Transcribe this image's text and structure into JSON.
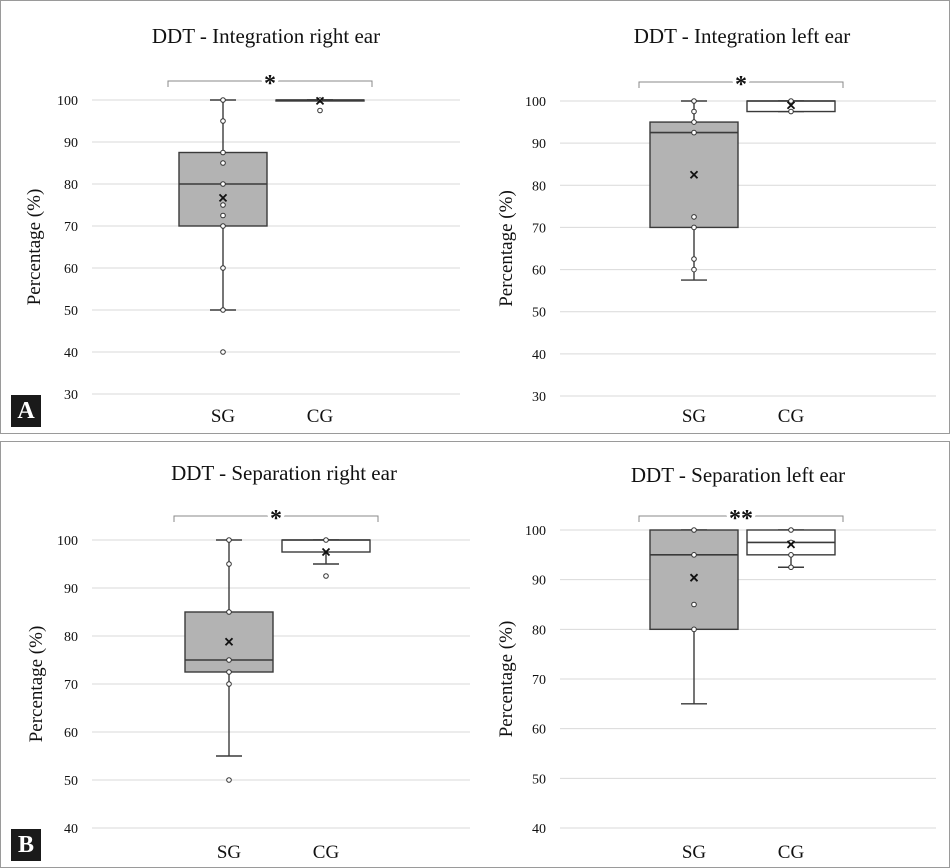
{
  "panels": [
    {
      "label": "A"
    },
    {
      "label": "B"
    }
  ],
  "colors": {
    "sg_box": "#b3b3b3",
    "cg_box": "#ffffff",
    "stroke": "#3a3a3a",
    "grid": "#d9d9d9"
  },
  "chart_data": [
    {
      "type": "box",
      "title": "DDT - Integration right ear",
      "ylabel": "Percentage (%)",
      "ylim": [
        30,
        100
      ],
      "yticks": [
        30,
        40,
        50,
        60,
        70,
        80,
        90,
        100
      ],
      "categories": [
        "SG",
        "CG"
      ],
      "significance": "*",
      "groups": [
        {
          "name": "SG",
          "min": 50,
          "q1": 70,
          "median": 80,
          "q3": 87.5,
          "max": 100,
          "mean": 76.7,
          "points": [
            40,
            50,
            60,
            70,
            72.5,
            75,
            80,
            85,
            87.5,
            95,
            100
          ]
        },
        {
          "name": "CG",
          "min": 100,
          "q1": 100,
          "median": 100,
          "q3": 100,
          "max": 100,
          "mean": 99.8,
          "points": [
            97.5,
            100
          ]
        }
      ]
    },
    {
      "type": "box",
      "title": "DDT - Integration left ear",
      "ylabel": "Percentage (%)",
      "ylim": [
        30,
        100
      ],
      "yticks": [
        30,
        40,
        50,
        60,
        70,
        80,
        90,
        100
      ],
      "categories": [
        "SG",
        "CG"
      ],
      "significance": "*",
      "groups": [
        {
          "name": "SG",
          "min": 57.5,
          "q1": 70,
          "median": 92.5,
          "q3": 95,
          "max": 100,
          "mean": 82.5,
          "points": [
            60,
            62.5,
            70,
            72.5,
            92.5,
            95,
            97.5,
            100
          ]
        },
        {
          "name": "CG",
          "min": 97.5,
          "q1": 97.5,
          "median": 100,
          "q3": 100,
          "max": 100,
          "mean": 99,
          "points": [
            97.5,
            100
          ]
        }
      ]
    },
    {
      "type": "box",
      "title": "DDT - Separation right ear",
      "ylabel": "Percentage (%)",
      "ylim": [
        40,
        100
      ],
      "yticks": [
        40,
        50,
        60,
        70,
        80,
        90,
        100
      ],
      "categories": [
        "SG",
        "CG"
      ],
      "significance": "*",
      "groups": [
        {
          "name": "SG",
          "min": 55,
          "q1": 72.5,
          "median": 75,
          "q3": 85,
          "max": 100,
          "mean": 78.8,
          "points": [
            50,
            70,
            72.5,
            75,
            85,
            95,
            100
          ]
        },
        {
          "name": "CG",
          "min": 95,
          "q1": 97.5,
          "median": 100,
          "q3": 100,
          "max": 100,
          "mean": 97.5,
          "points": [
            92.5,
            100
          ]
        }
      ]
    },
    {
      "type": "box",
      "title": "DDT - Separation left ear",
      "ylabel": "Percentage (%)",
      "ylim": [
        40,
        100
      ],
      "yticks": [
        40,
        50,
        60,
        70,
        80,
        90,
        100
      ],
      "categories": [
        "SG",
        "CG"
      ],
      "significance": "**",
      "groups": [
        {
          "name": "SG",
          "min": 65,
          "q1": 80,
          "median": 95,
          "q3": 100,
          "max": 100,
          "mean": 90.4,
          "points": [
            80,
            85,
            95,
            100
          ]
        },
        {
          "name": "CG",
          "min": 92.5,
          "q1": 95,
          "median": 97.5,
          "q3": 100,
          "max": 100,
          "mean": 97.1,
          "points": [
            92.5,
            95,
            97.5,
            100
          ]
        }
      ]
    }
  ]
}
